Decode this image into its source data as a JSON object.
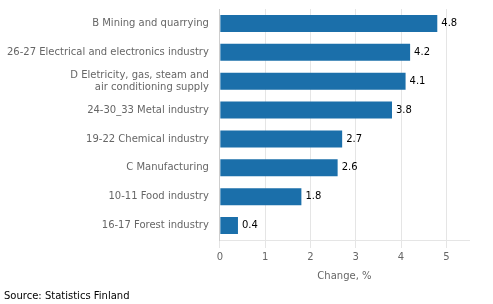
{
  "chart_data": {
    "type": "bar",
    "orientation": "horizontal",
    "categories": [
      "16-17 Forest industry",
      "10-11 Food industry",
      "C Manufacturing",
      "19-22 Chemical industry",
      "24-30_33 Metal industry",
      "D Eletricity, gas, steam and\nair conditioning supply",
      "26-27 Electrical and electronics industry",
      "B Mining and quarrying"
    ],
    "values": [
      0.4,
      1.8,
      2.6,
      2.7,
      3.8,
      4.1,
      4.2,
      4.8
    ],
    "color": "#1b6faa",
    "xlabel": "Change, %",
    "xlim": [
      0,
      5.5
    ],
    "xticks": [
      0,
      1,
      2,
      3,
      4,
      5
    ],
    "grid": true,
    "data_labels": true,
    "annotations": [
      "Source: Statistics Finland"
    ]
  }
}
